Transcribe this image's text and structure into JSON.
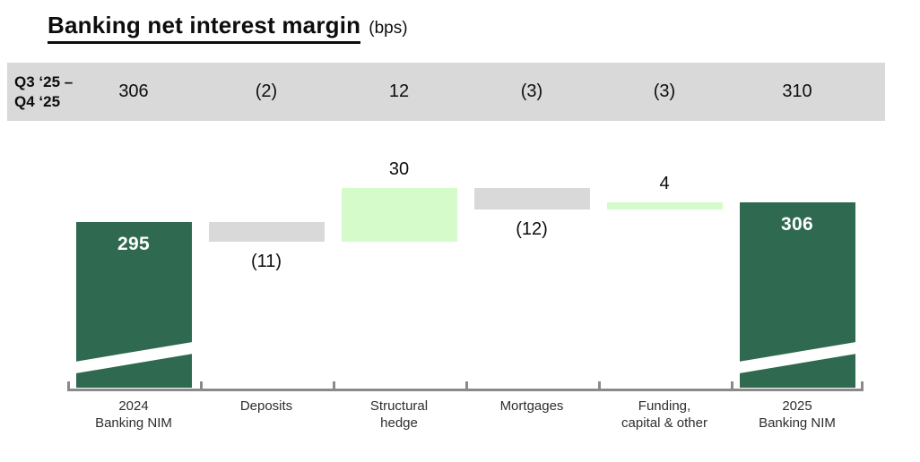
{
  "title": {
    "main": "Banking net interest margin",
    "unit": "(bps)"
  },
  "qoq_band": {
    "label_line1": "Q3 ‘25 –",
    "label_line2": "Q4 ‘25",
    "values": [
      "306",
      "(2)",
      "12",
      "(3)",
      "(3)",
      "310"
    ],
    "bg_color": "#d9d9d9"
  },
  "chart_data": {
    "type": "bar",
    "subtype": "waterfall",
    "title": "Banking net interest margin (bps)",
    "unit": "bps",
    "categories": [
      "2024\nBanking NIM",
      "Deposits",
      "Structural\nhedge",
      "Mortgages",
      "Funding,\ncapital & other",
      "2025\nBanking NIM"
    ],
    "steps": [
      {
        "name": "2024 Banking NIM",
        "kind": "total",
        "value": 295,
        "label": "295"
      },
      {
        "name": "Deposits",
        "kind": "delta",
        "value": -11,
        "label": "(11)"
      },
      {
        "name": "Structural hedge",
        "kind": "delta",
        "value": 30,
        "label": "30"
      },
      {
        "name": "Mortgages",
        "kind": "delta",
        "value": -12,
        "label": "(12)"
      },
      {
        "name": "Funding, capital & other",
        "kind": "delta",
        "value": 4,
        "label": "4"
      },
      {
        "name": "2025 Banking NIM",
        "kind": "total",
        "value": 306,
        "label": "306"
      }
    ],
    "qoq_change_row": {
      "label": "Q3 ‘25 – Q4 ‘25",
      "values": [
        306,
        -2,
        12,
        -3,
        -3,
        310
      ]
    },
    "axis_break_on_totals": true,
    "legend": "none",
    "grid": false,
    "colors": {
      "total": "#2e6950",
      "increase": "#d5fbca",
      "decrease": "#d9d9d9",
      "axis": "#8a8a8a"
    }
  }
}
